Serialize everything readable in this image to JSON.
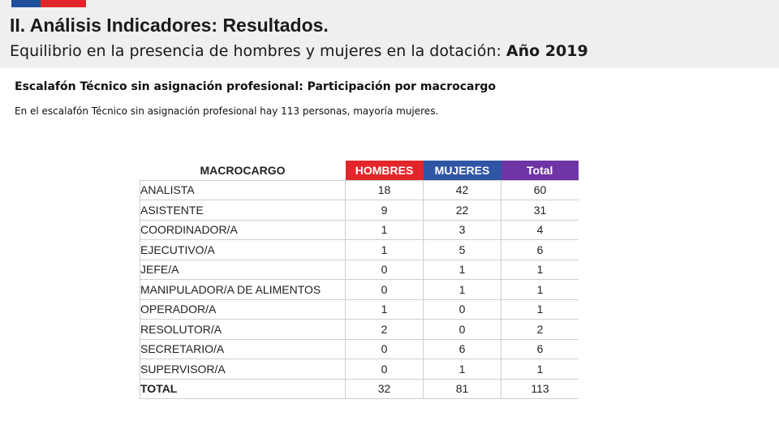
{
  "header": {
    "title": "II. Análisis Indicadores: Resultados.",
    "subtitle_prefix": "Equilibrio en la presencia de hombres y mujeres en la dotación:",
    "subtitle_year": "Año 2019",
    "flag_colors": [
      "#1f4e9a",
      "#e0262a"
    ]
  },
  "section": {
    "heading": "Escalafón Técnico sin asignación profesional: Participación por macrocargo",
    "text": "En el escalafón Técnico sin asignación profesional hay 113 personas, mayoría mujeres."
  },
  "table": {
    "columns": [
      "MACROCARGO",
      "HOMBRES",
      "MUJERES",
      "Total"
    ],
    "column_colors": {
      "HOMBRES": "#e3262b",
      "MUJERES": "#2f55a4",
      "Total": "#6f35a6"
    },
    "rows": [
      [
        "ANALISTA",
        "18",
        "42",
        "60"
      ],
      [
        "ASISTENTE",
        "9",
        "22",
        "31"
      ],
      [
        "COORDINADOR/A",
        "1",
        "3",
        "4"
      ],
      [
        "EJECUTIVO/A",
        "1",
        "5",
        "6"
      ],
      [
        "JEFE/A",
        "0",
        "1",
        "1"
      ],
      [
        "MANIPULADOR/A DE ALIMENTOS",
        "0",
        "1",
        "1"
      ],
      [
        "OPERADOR/A",
        "1",
        "0",
        "1"
      ],
      [
        "RESOLUTOR/A",
        "2",
        "0",
        "2"
      ],
      [
        "SECRETARIO/A",
        "0",
        "6",
        "6"
      ],
      [
        "SUPERVISOR/A",
        "0",
        "1",
        "1"
      ]
    ],
    "total": [
      "TOTAL",
      "32",
      "81",
      "113"
    ]
  }
}
